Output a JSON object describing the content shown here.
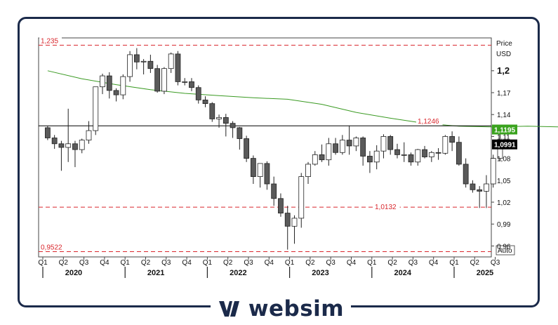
{
  "chart_data": {
    "type": "candlestick",
    "price_label": "Price",
    "currency_label": "USD",
    "auto_label": "Auto",
    "ylim": [
      0.945,
      1.245
    ],
    "yticks": [
      "0,96",
      "0,99",
      "1,02",
      "1,05",
      "1,08",
      "1,11",
      "1,14",
      "1,17",
      "1,2"
    ],
    "y_tick_values": [
      0.96,
      0.99,
      1.02,
      1.05,
      1.08,
      1.11,
      1.14,
      1.17,
      1.2
    ],
    "bold_tick": "1,2",
    "quarters": [
      "Q1",
      "Q2",
      "Q3",
      "Q4",
      "Q1",
      "Q2",
      "Q3",
      "Q4",
      "Q1",
      "Q2",
      "Q3",
      "Q4",
      "Q1",
      "Q2",
      "Q3",
      "Q4",
      "Q1",
      "Q2",
      "Q3",
      "Q4",
      "Q1",
      "Q2",
      "Q3"
    ],
    "years": [
      "2020",
      "2021",
      "2022",
      "2023",
      "2024",
      "2025"
    ],
    "horizontal_levels": [
      {
        "label": "1,235",
        "value": 1.235,
        "style": "dashed",
        "color": "#d9262c"
      },
      {
        "label": "1,1246",
        "value": 1.1246,
        "style": "solid",
        "color": "#000000"
      },
      {
        "label": "1,0132",
        "value": 1.0132,
        "style": "dashed",
        "color": "#d9262c"
      },
      {
        "label": "0,9522",
        "value": 0.9522,
        "style": "dashed",
        "color": "#d9262c"
      }
    ],
    "price_tags": [
      {
        "label": "1,1195",
        "value": 1.1195,
        "bg": "#3aa31e",
        "fg": "#ffffff"
      },
      {
        "label": "1,0991",
        "value": 1.0991,
        "bg": "#000000",
        "fg": "#ffffff"
      }
    ],
    "colors": {
      "up": "#ffffff",
      "down": "#5a5a5a",
      "outline": "#222222",
      "ma": "#3a9a22"
    },
    "moving_average": {
      "idx": [
        0,
        5,
        10,
        15,
        20,
        25,
        30,
        35,
        40,
        45,
        50,
        55,
        60,
        65,
        70,
        75,
        80,
        85,
        90,
        95,
        100,
        105,
        110,
        115,
        120,
        125,
        132
      ],
      "values": [
        1.2,
        1.189,
        1.181,
        1.174,
        1.169,
        1.166,
        1.163,
        1.161,
        1.154,
        1.143,
        1.135,
        1.128,
        1.124,
        1.123,
        1.124,
        1.123,
        1.122,
        1.122,
        1.121,
        1.121,
        1.12,
        1.12,
        1.119,
        1.119,
        1.118,
        1.118,
        1.1195
      ]
    },
    "candles": [
      [
        1.122,
        1.124,
        1.105,
        1.108
      ],
      [
        1.108,
        1.112,
        1.093,
        1.1
      ],
      [
        1.1,
        1.104,
        1.063,
        1.095
      ],
      [
        1.095,
        1.148,
        1.075,
        1.1
      ],
      [
        1.1,
        1.104,
        1.068,
        1.092
      ],
      [
        1.092,
        1.107,
        1.087,
        1.105
      ],
      [
        1.105,
        1.131,
        1.1,
        1.118
      ],
      [
        1.118,
        1.175,
        1.112,
        1.178
      ],
      [
        1.178,
        1.196,
        1.168,
        1.193
      ],
      [
        1.193,
        1.198,
        1.162,
        1.173
      ],
      [
        1.173,
        1.176,
        1.158,
        1.167
      ],
      [
        1.167,
        1.195,
        1.161,
        1.192
      ],
      [
        1.192,
        1.227,
        1.185,
        1.222
      ],
      [
        1.222,
        1.231,
        1.202,
        1.212
      ],
      [
        1.212,
        1.216,
        1.195,
        1.213
      ],
      [
        1.213,
        1.222,
        1.197,
        1.203
      ],
      [
        1.203,
        1.208,
        1.17,
        1.172
      ],
      [
        1.172,
        1.205,
        1.168,
        1.203
      ],
      [
        1.203,
        1.225,
        1.197,
        1.223
      ],
      [
        1.223,
        1.227,
        1.18,
        1.185
      ],
      [
        1.185,
        1.19,
        1.18,
        1.185
      ],
      [
        1.185,
        1.19,
        1.172,
        1.177
      ],
      [
        1.177,
        1.18,
        1.155,
        1.16
      ],
      [
        1.16,
        1.165,
        1.15,
        1.155
      ],
      [
        1.155,
        1.157,
        1.13,
        1.134
      ],
      [
        1.134,
        1.14,
        1.122,
        1.136
      ],
      [
        1.136,
        1.141,
        1.11,
        1.128
      ],
      [
        1.128,
        1.131,
        1.108,
        1.122
      ],
      [
        1.122,
        1.123,
        1.092,
        1.107
      ],
      [
        1.107,
        1.111,
        1.075,
        1.08
      ],
      [
        1.08,
        1.084,
        1.045,
        1.055
      ],
      [
        1.055,
        1.073,
        1.04,
        1.073
      ],
      [
        1.073,
        1.076,
        1.037,
        1.045
      ],
      [
        1.045,
        1.055,
        1.015,
        1.025
      ],
      [
        1.025,
        1.032,
        1.0,
        1.005
      ],
      [
        1.005,
        1.015,
        0.955,
        0.987
      ],
      [
        0.987,
        1.002,
        0.963,
        0.998
      ],
      [
        0.998,
        1.06,
        0.985,
        1.055
      ],
      [
        1.055,
        1.075,
        1.045,
        1.072
      ],
      [
        1.072,
        1.09,
        1.07,
        1.085
      ],
      [
        1.085,
        1.099,
        1.075,
        1.078
      ],
      [
        1.078,
        1.108,
        1.07,
        1.1
      ],
      [
        1.1,
        1.108,
        1.085,
        1.088
      ],
      [
        1.088,
        1.112,
        1.085,
        1.105
      ],
      [
        1.105,
        1.125,
        1.085,
        1.097
      ],
      [
        1.097,
        1.11,
        1.09,
        1.108
      ],
      [
        1.108,
        1.11,
        1.07,
        1.083
      ],
      [
        1.083,
        1.09,
        1.06,
        1.075
      ],
      [
        1.075,
        1.098,
        1.065,
        1.09
      ],
      [
        1.09,
        1.113,
        1.08,
        1.11
      ],
      [
        1.11,
        1.112,
        1.085,
        1.092
      ],
      [
        1.092,
        1.1,
        1.08,
        1.085
      ],
      [
        1.085,
        1.102,
        1.075,
        1.085
      ],
      [
        1.085,
        1.088,
        1.07,
        1.075
      ],
      [
        1.075,
        1.093,
        1.07,
        1.092
      ],
      [
        1.092,
        1.097,
        1.08,
        1.082
      ],
      [
        1.082,
        1.09,
        1.075,
        1.088
      ],
      [
        1.088,
        1.094,
        1.078,
        1.087
      ],
      [
        1.087,
        1.112,
        1.085,
        1.11
      ],
      [
        1.11,
        1.117,
        1.09,
        1.102
      ],
      [
        1.102,
        1.11,
        1.07,
        1.072
      ],
      [
        1.072,
        1.08,
        1.04,
        1.045
      ],
      [
        1.045,
        1.05,
        1.033,
        1.037
      ],
      [
        1.037,
        1.042,
        1.012,
        1.035
      ],
      [
        1.035,
        1.057,
        1.012,
        1.045
      ],
      [
        1.045,
        1.085,
        1.04,
        1.08
      ],
      [
        1.08,
        1.115,
        1.076,
        1.099
      ]
    ]
  }
}
